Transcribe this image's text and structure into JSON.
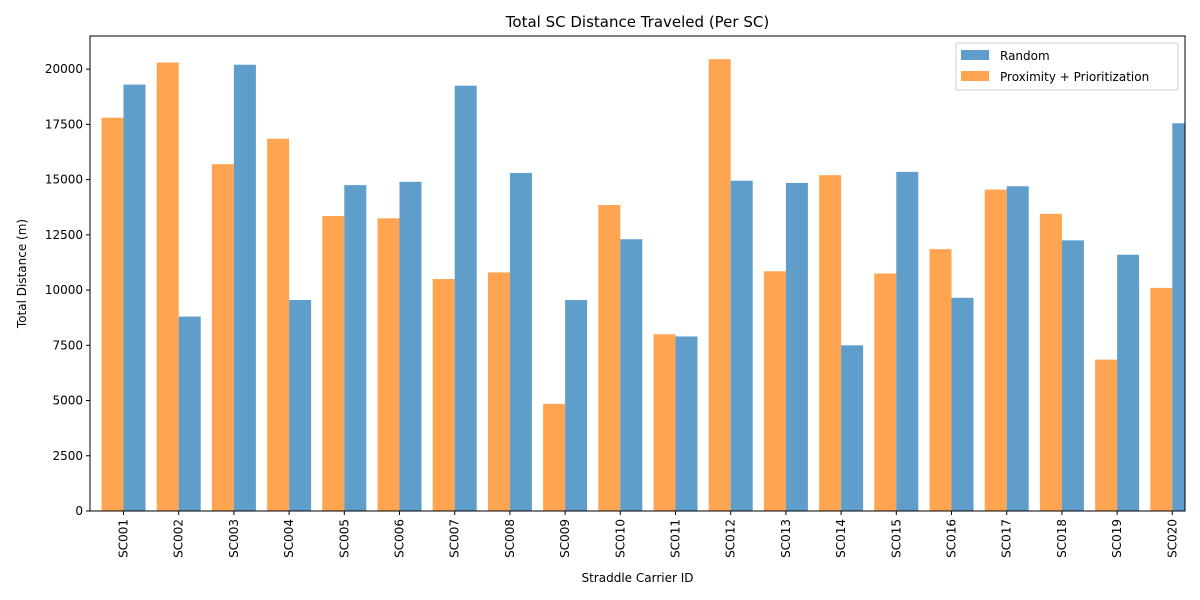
{
  "chart_data": {
    "type": "bar",
    "title": "Total SC Distance Traveled (Per SC)",
    "xlabel": "Straddle Carrier ID",
    "ylabel": "Total Distance (m)",
    "ylim": [
      0,
      21500
    ],
    "yticks": [
      0,
      2500,
      5000,
      7500,
      10000,
      12500,
      15000,
      17500,
      20000
    ],
    "legend_position": "top-right",
    "grid": false,
    "categories": [
      "SC001",
      "SC002",
      "SC003",
      "SC004",
      "SC005",
      "SC006",
      "SC007",
      "SC008",
      "SC009",
      "SC010",
      "SC011",
      "SC012",
      "SC013",
      "SC014",
      "SC015",
      "SC016",
      "SC017",
      "SC018",
      "SC019",
      "SC020"
    ],
    "series": [
      {
        "name": "Random",
        "color": "#5f9ecb",
        "values": [
          19300,
          8800,
          20200,
          9550,
          14750,
          14900,
          19250,
          15300,
          9550,
          12300,
          7900,
          14950,
          14850,
          7500,
          15350,
          9650,
          14700,
          12250,
          11600,
          17550
        ]
      },
      {
        "name": "Proximity + Prioritization",
        "color": "#ffa552",
        "values": [
          17800,
          20300,
          15700,
          16850,
          13350,
          13250,
          10500,
          10800,
          4850,
          13850,
          8000,
          20450,
          10850,
          15200,
          10750,
          11850,
          14550,
          13450,
          6850,
          10100
        ]
      }
    ]
  }
}
